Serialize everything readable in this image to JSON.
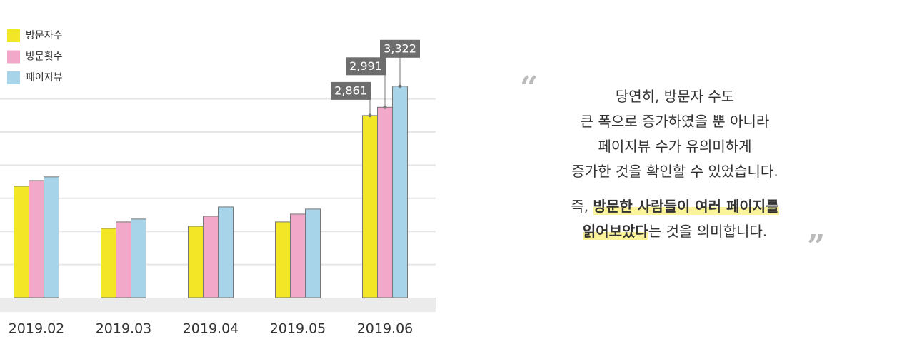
{
  "chart_data": {
    "type": "bar",
    "categories": [
      "2019.02",
      "2019.03",
      "2019.04",
      "2019.05",
      "2019.06"
    ],
    "series": [
      {
        "name": "방문자수",
        "color": "#f2e626",
        "values": [
          1751,
          1089,
          1122,
          1190,
          2861
        ],
        "value_labels": [
          null,
          null,
          null,
          null,
          "2,861"
        ]
      },
      {
        "name": "방문횟수",
        "color": "#f2a9c9",
        "values": [
          1840,
          1190,
          1279,
          1313,
          2991
        ],
        "value_labels": [
          null,
          null,
          null,
          null,
          "2,991"
        ]
      },
      {
        "name": "페이지뷰",
        "color": "#a8d4ea",
        "values": [
          1897,
          1235,
          1425,
          1392,
          3322
        ],
        "value_labels": [
          null,
          null,
          null,
          null,
          "3,322"
        ]
      }
    ],
    "ylim": [
      0,
      3600
    ],
    "grid": true,
    "legend": "top-left"
  },
  "quote": {
    "lines": [
      "당연히, 방문자 수도",
      "큰 폭으로 증가하였을 뿐 아니라",
      "페이지뷰 수가 유의미하게",
      "증가한 것을 확인할 수 있었습니다."
    ],
    "emphasis": [
      "즉, ",
      "방문한 사람들이 여러 페이지를",
      "읽어보았다",
      "는 것을 의미합니다."
    ]
  }
}
